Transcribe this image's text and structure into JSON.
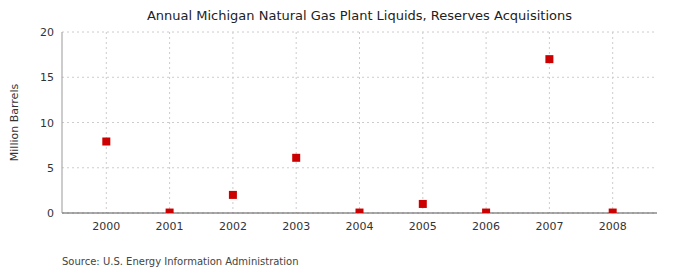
{
  "chart_data": {
    "type": "scatter",
    "title": "Annual Michigan Natural Gas Plant Liquids, Reserves Acquisitions",
    "ylabel": "Million Barrels",
    "source": "Source: U.S. Energy Information Administration",
    "x": [
      2000,
      2001,
      2002,
      2003,
      2004,
      2005,
      2006,
      2007,
      2008
    ],
    "values": [
      7.9,
      0.05,
      2.0,
      6.1,
      0.05,
      1.0,
      0.05,
      17.0,
      0.05
    ],
    "color": "#cc0000",
    "marker": "square",
    "xlim": [
      1999.3,
      2008.7
    ],
    "ylim": [
      0,
      20
    ],
    "xticks": [
      2000,
      2001,
      2002,
      2003,
      2004,
      2005,
      2006,
      2007,
      2008
    ],
    "yticks": [
      0,
      5,
      10,
      15,
      20
    ],
    "grid": true
  }
}
